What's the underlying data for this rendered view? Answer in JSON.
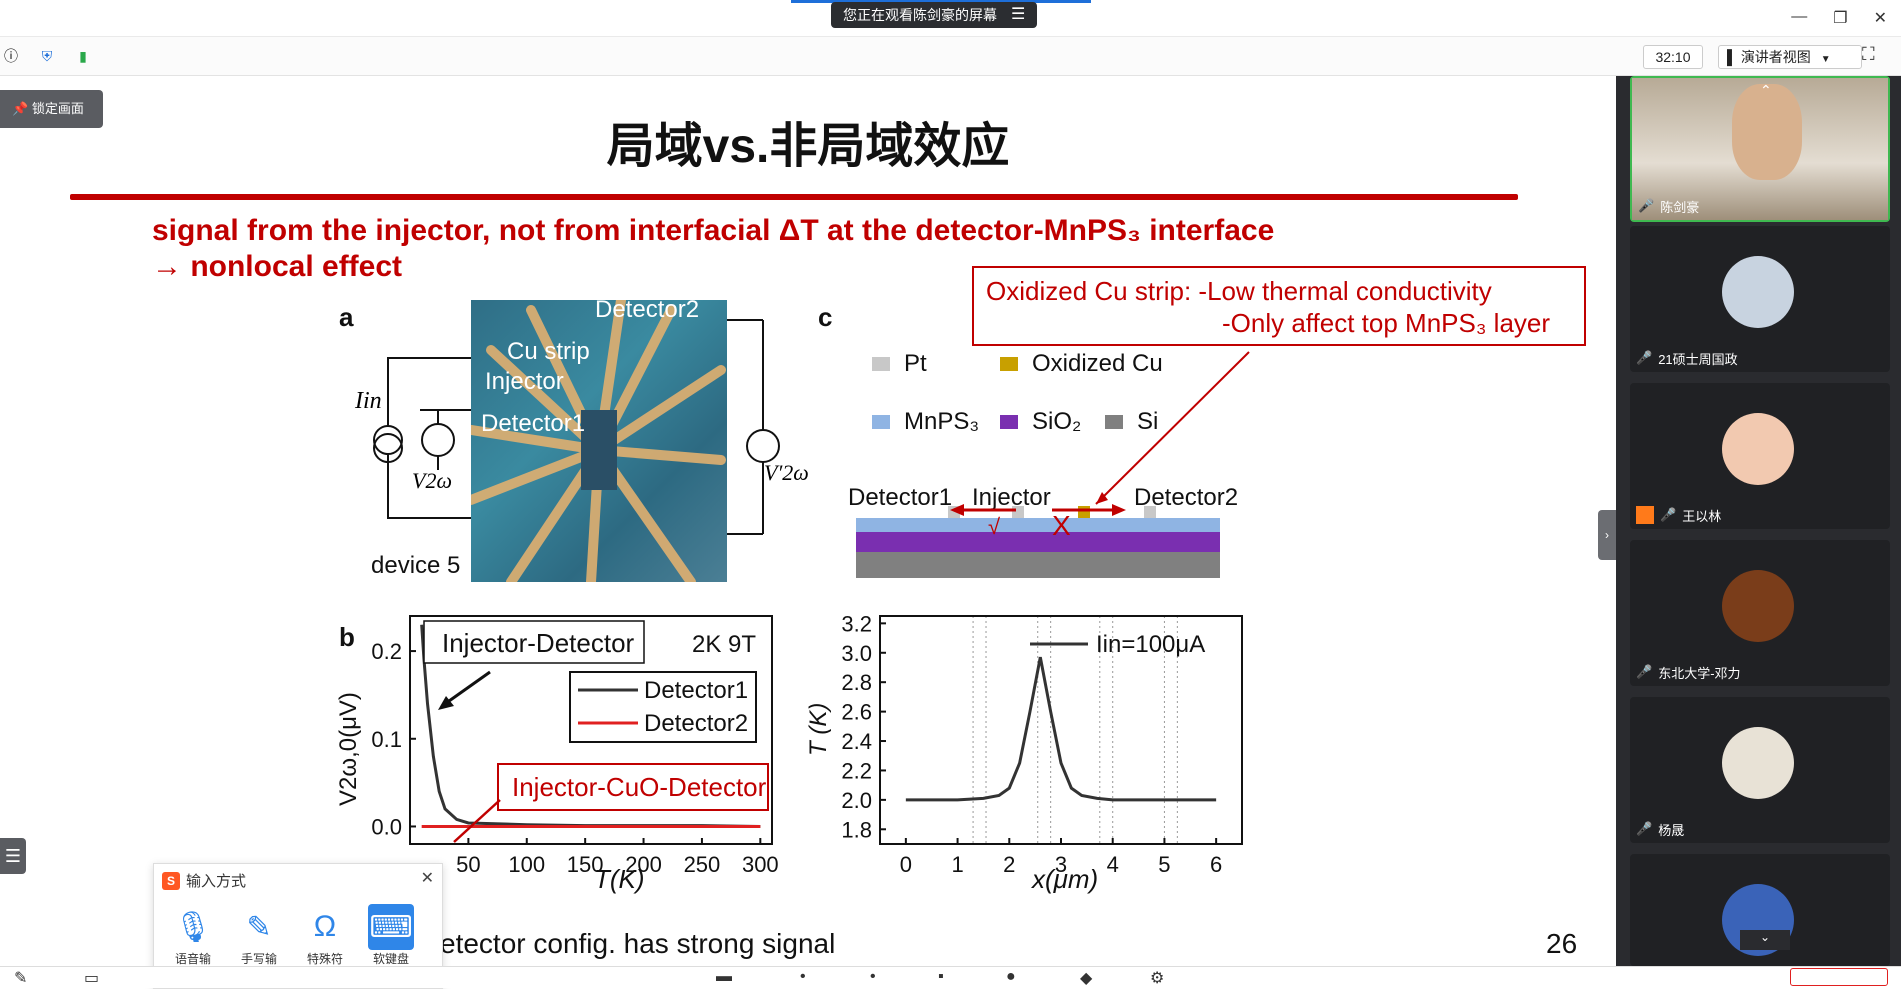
{
  "topbar": {
    "share_label": "您正在观看陈剑豪的屏幕",
    "share_menu_icon": "list-icon",
    "window_controls": [
      "minimize-icon",
      "restore-icon",
      "close-icon"
    ]
  },
  "toolbar": {
    "timer": "32:10",
    "view_mode": "演讲者视图",
    "lock_label": "锁定画面"
  },
  "slide": {
    "title": "局域vs.非局域效应",
    "subtitle_line1": "signal from the injector, not from interfacial ΔT at the detector-MnPS₃ interface",
    "subtitle_line2": "→ nonlocal effect",
    "panel_a": "a",
    "panel_b": "b",
    "panel_c": "c",
    "device_labels": {
      "cu_strip": "Cu strip",
      "injector": "Injector",
      "detector1": "Detector1",
      "detector2": "Detector2",
      "iin": "Iin",
      "v2w": "V2ω",
      "v2w_prime": "V′2ω",
      "device": "device 5"
    },
    "callout": {
      "line1": "Oxidized Cu strip: -Low thermal conductivity",
      "line2": "-Only affect top MnPS₃ layer"
    },
    "legend": [
      {
        "label": "Pt",
        "color": "#c8c8c8"
      },
      {
        "label": "Oxidized Cu",
        "color": "#c8a000"
      },
      {
        "label": "MnPS₃",
        "color": "#8fb4e3"
      },
      {
        "label": "SiO₂",
        "color": "#7a2fb0"
      },
      {
        "label": "Si",
        "color": "#808080"
      }
    ],
    "layer_labels": {
      "detector1": "Detector1",
      "injector": "Injector",
      "detector2": "Detector2",
      "check": "√",
      "cross": "X"
    },
    "footnote": "etector config. has strong signal",
    "page_number": "26"
  },
  "chart_data": [
    {
      "type": "line",
      "title": "Injector-Detector",
      "annotation": "2K 9T",
      "annotation2": "Injector-CuO-Detector",
      "xlabel": "T(K)",
      "ylabel": "V2ω,0(μV)",
      "xlim": [
        0,
        310
      ],
      "ylim": [
        -0.02,
        0.24
      ],
      "xticks": [
        0,
        50,
        100,
        150,
        200,
        250,
        300
      ],
      "xtick_labels": [
        "",
        "50",
        "100",
        "150",
        "200",
        "250",
        "300"
      ],
      "yticks": [
        0.0,
        0.1,
        0.2
      ],
      "ytick_labels": [
        "0.0",
        "0.1",
        "0.2"
      ],
      "series": [
        {
          "name": "Detector1",
          "color": "#333333",
          "x": [
            10,
            12,
            15,
            20,
            25,
            30,
            40,
            50,
            100,
            150,
            200,
            250,
            300
          ],
          "y": [
            0.23,
            0.19,
            0.14,
            0.08,
            0.04,
            0.02,
            0.008,
            0.004,
            0.002,
            0.001,
            0.001,
            0.001,
            0.0
          ]
        },
        {
          "name": "Detector2",
          "color": "#e02020",
          "x": [
            10,
            20,
            50,
            100,
            150,
            200,
            250,
            300
          ],
          "y": [
            0.0,
            0.0,
            0.0,
            0.0,
            0.0,
            0.0,
            0.0,
            0.0
          ]
        }
      ]
    },
    {
      "type": "line",
      "title": "",
      "legend_label": "Iin=100μA",
      "xlabel": "x(μm)",
      "ylabel": "T (K)",
      "xlim": [
        -0.5,
        6.5
      ],
      "ylim": [
        1.7,
        3.25
      ],
      "xticks": [
        0,
        1,
        2,
        3,
        4,
        5,
        6
      ],
      "xtick_labels": [
        "0",
        "1",
        "2",
        "3",
        "4",
        "5",
        "6"
      ],
      "yticks": [
        1.8,
        2.0,
        2.2,
        2.4,
        2.6,
        2.8,
        3.0,
        3.2
      ],
      "ytick_labels": [
        "1.8",
        "2.0",
        "2.2",
        "2.4",
        "2.6",
        "2.8",
        "3.0",
        "3.2"
      ],
      "series": [
        {
          "name": "Iin=100μA",
          "color": "#333333",
          "x": [
            0,
            1,
            1.5,
            1.8,
            2.0,
            2.2,
            2.4,
            2.6,
            2.8,
            3.0,
            3.2,
            3.4,
            3.7,
            4.0,
            5.0,
            6.0
          ],
          "y": [
            2.0,
            2.0,
            2.01,
            2.03,
            2.08,
            2.25,
            2.6,
            2.97,
            2.6,
            2.25,
            2.08,
            2.03,
            2.01,
            2.0,
            2.0,
            2.0
          ]
        }
      ]
    }
  ],
  "participants": [
    {
      "name": "陈剑豪",
      "mic": "on",
      "active": true
    },
    {
      "name": "21硕士周国政",
      "mic": "off"
    },
    {
      "name": "王以林",
      "mic": "off"
    },
    {
      "name": "东北大学-邓力",
      "mic": "off"
    },
    {
      "name": "杨晟",
      "mic": "off"
    },
    {
      "name": "",
      "mic": "off"
    }
  ],
  "ime": {
    "title": "输入方式",
    "tools": [
      {
        "label": "语音输入",
        "icon": "microphone-icon"
      },
      {
        "label": "手写输入",
        "icon": "pencil-icon"
      },
      {
        "label": "特殊符号",
        "icon": "omega-icon"
      },
      {
        "label": "软键盘",
        "icon": "keyboard-icon"
      }
    ]
  }
}
